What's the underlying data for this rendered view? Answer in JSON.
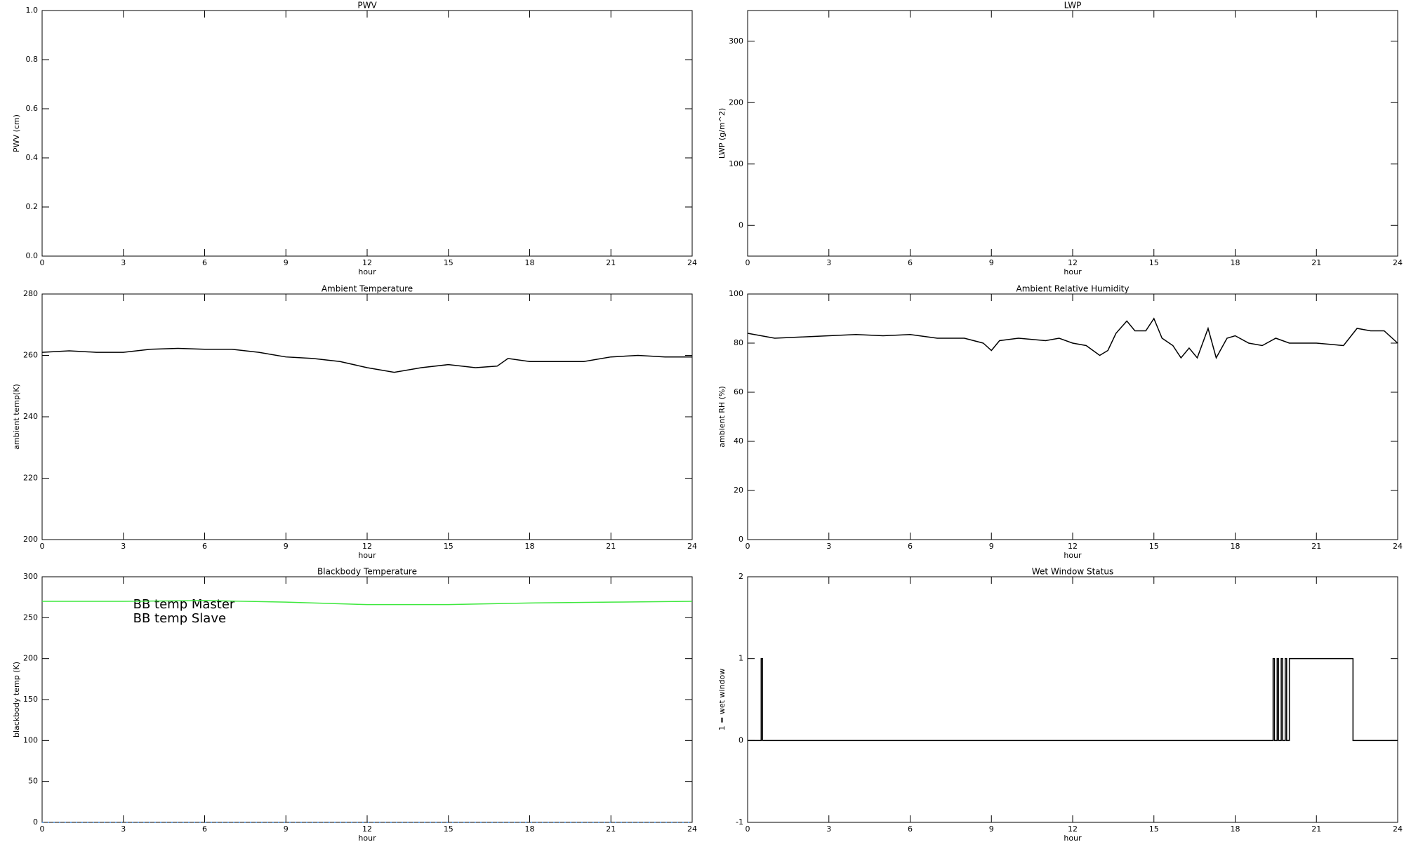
{
  "chart_data": [
    {
      "type": "line",
      "title": "PWV",
      "xlabel": "hour",
      "ylabel": "PWV (cm)",
      "xlim": [
        0,
        24
      ],
      "xticks": [
        0,
        3,
        6,
        9,
        12,
        15,
        18,
        21,
        24
      ],
      "ylim": [
        0,
        1
      ],
      "yticks": [
        {
          "value": 0,
          "label": "0.0"
        },
        {
          "value": 0.2,
          "label": "0.2"
        },
        {
          "value": 0.4,
          "label": "0.4"
        },
        {
          "value": 0.6,
          "label": "0.6"
        },
        {
          "value": 0.8,
          "label": "0.8"
        },
        {
          "value": 1,
          "label": "1.0"
        }
      ],
      "series": []
    },
    {
      "type": "line",
      "title": "LWP",
      "xlabel": "hour",
      "ylabel": "LWP (g/m^2)",
      "xlim": [
        0,
        24
      ],
      "xticks": [
        0,
        3,
        6,
        9,
        12,
        15,
        18,
        21,
        24
      ],
      "ylim": [
        -50,
        350
      ],
      "yticks": [
        0,
        100,
        200,
        300
      ],
      "series": []
    },
    {
      "type": "line",
      "title": "Ambient Temperature",
      "xlabel": "hour",
      "ylabel": "ambient temp(K)",
      "xlim": [
        0,
        24
      ],
      "xticks": [
        0,
        3,
        6,
        9,
        12,
        15,
        18,
        21,
        24
      ],
      "ylim": [
        200,
        280
      ],
      "yticks": [
        200,
        220,
        240,
        260,
        280
      ],
      "x": [
        0,
        1,
        2,
        3,
        4,
        5,
        6,
        7,
        8,
        9,
        10,
        11,
        12,
        13,
        14,
        15,
        16,
        16.8,
        17.2,
        18,
        19,
        20,
        21,
        22,
        23,
        24
      ],
      "series": [
        {
          "color": "#000000",
          "values": [
            261,
            261.5,
            261,
            261,
            262,
            262.3,
            262,
            262,
            261,
            259.5,
            259,
            258,
            256,
            254.5,
            256,
            257,
            256,
            256.5,
            259,
            258,
            258,
            258,
            259.5,
            260,
            259.5,
            259.5
          ]
        }
      ]
    },
    {
      "type": "line",
      "title": "Ambient Relative Humidity",
      "xlabel": "hour",
      "ylabel": "ambient RH (%)",
      "xlim": [
        0,
        24
      ],
      "xticks": [
        0,
        3,
        6,
        9,
        12,
        15,
        18,
        21,
        24
      ],
      "ylim": [
        0,
        100
      ],
      "yticks": [
        0,
        20,
        40,
        60,
        80,
        100
      ],
      "x": [
        0,
        0.5,
        1,
        2,
        3,
        4,
        5,
        6,
        7,
        8,
        8.7,
        9,
        9.3,
        10,
        11,
        11.5,
        12,
        12.5,
        13,
        13.3,
        13.6,
        14,
        14.3,
        14.7,
        15,
        15.3,
        15.7,
        16,
        16.3,
        16.6,
        17,
        17.3,
        17.7,
        18,
        18.5,
        19,
        19.5,
        20,
        21,
        22,
        22.5,
        23,
        23.5,
        24
      ],
      "series": [
        {
          "color": "#000000",
          "values": [
            84,
            83,
            82,
            82.5,
            83,
            83.5,
            83,
            83.5,
            82,
            82,
            80,
            77,
            81,
            82,
            81,
            82,
            80,
            79,
            75,
            77,
            84,
            89,
            85,
            85,
            90,
            82,
            79,
            74,
            78,
            74,
            86,
            74,
            82,
            83,
            80,
            79,
            82,
            80,
            80,
            79,
            86,
            85,
            85,
            80
          ]
        }
      ]
    },
    {
      "type": "line",
      "title": "Blackbody Temperature",
      "xlabel": "hour",
      "ylabel": "blackbody temp (K)",
      "xlim": [
        0,
        24
      ],
      "xticks": [
        0,
        3,
        6,
        9,
        12,
        15,
        18,
        21,
        24
      ],
      "ylim": [
        0,
        300
      ],
      "yticks": [
        0,
        50,
        100,
        150,
        200,
        250,
        300
      ],
      "x": [
        0,
        3,
        6,
        9,
        12,
        15,
        18,
        21,
        24
      ],
      "series": [
        {
          "name": "BB temp Master",
          "color": "#3d8ee8",
          "values": [
            0,
            0,
            0,
            0,
            0,
            0,
            0,
            0,
            0
          ]
        },
        {
          "name": "BB temp Slave",
          "color": "#3ee83e",
          "values": [
            270,
            270,
            271,
            269,
            266,
            266,
            268,
            269,
            270
          ]
        }
      ]
    },
    {
      "type": "line",
      "title": "Wet Window Status",
      "xlabel": "hour",
      "ylabel": "1 = wet window",
      "xlim": [
        0,
        24
      ],
      "xticks": [
        0,
        3,
        6,
        9,
        12,
        15,
        18,
        21,
        24
      ],
      "ylim": [
        -1,
        2
      ],
      "yticks": [
        -1,
        0,
        1,
        2
      ],
      "x": [
        0,
        0.5,
        0.5,
        0.55,
        0.55,
        19.4,
        19.4,
        19.45,
        19.45,
        19.55,
        19.55,
        19.6,
        19.6,
        19.7,
        19.7,
        19.75,
        19.75,
        19.85,
        19.85,
        19.9,
        19.9,
        20.0,
        20.0,
        22.35,
        22.35,
        24
      ],
      "series": [
        {
          "color": "#000000",
          "values": [
            0,
            0,
            1,
            1,
            0,
            0,
            1,
            1,
            0,
            0,
            1,
            1,
            0,
            0,
            1,
            1,
            0,
            0,
            1,
            1,
            0,
            0,
            1,
            1,
            0,
            0
          ]
        }
      ]
    }
  ]
}
